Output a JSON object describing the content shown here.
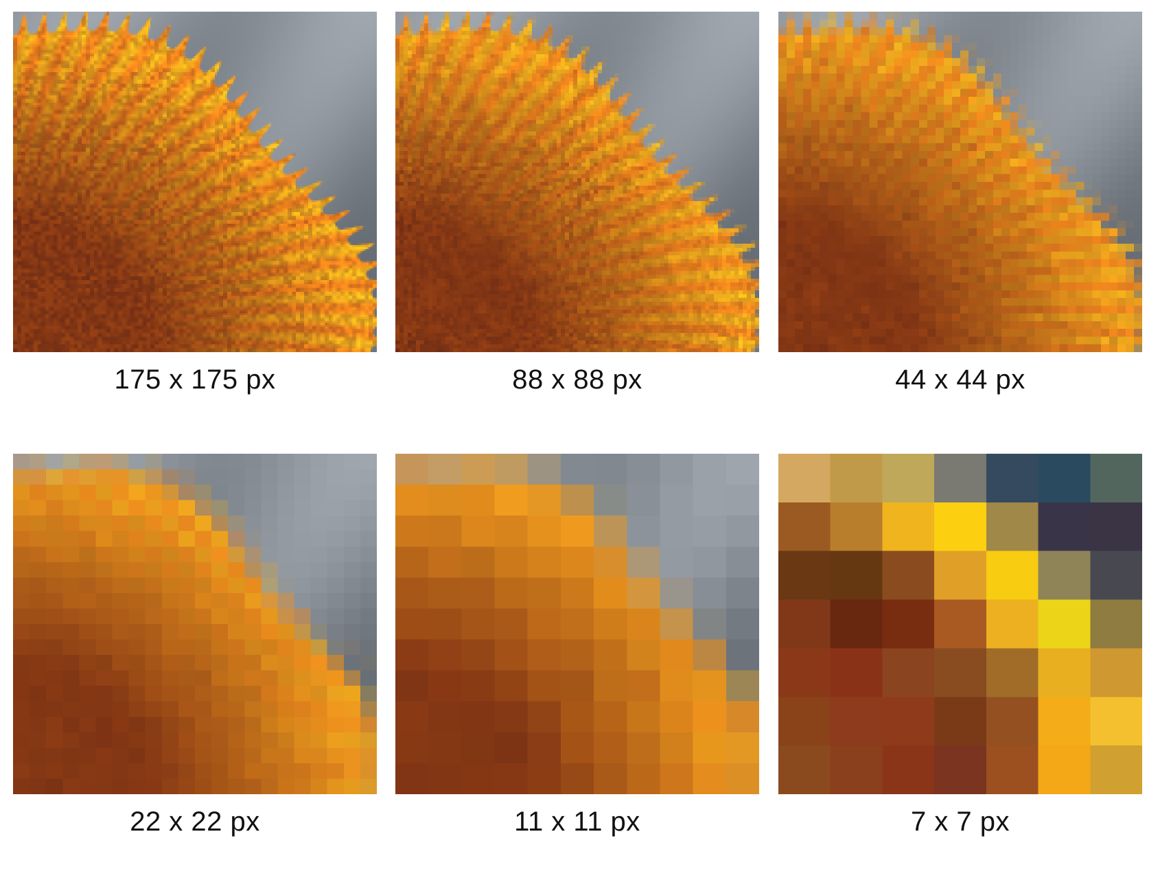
{
  "panels": [
    {
      "label": "175 x 175 px",
      "resolution": 175
    },
    {
      "label": "88 x 88 px",
      "resolution": 88
    },
    {
      "label": "44 x 44 px",
      "resolution": 44
    },
    {
      "label": "22 x 22 px",
      "resolution": 22
    },
    {
      "label": "11 x 11 px",
      "resolution": 11
    },
    {
      "label": "7 x 7 px",
      "resolution": 7
    }
  ],
  "grid_7x7_colors": [
    [
      "#d4a860",
      "#c09a48",
      "#c0a85a",
      "#7a7a72",
      "#354a5e",
      "#2a4a60",
      "#52665e"
    ],
    [
      "#9a5a22",
      "#b87e2c",
      "#f0b41e",
      "#fcd010",
      "#a08848",
      "#3a3448",
      "#3a3444"
    ],
    [
      "#6a3812",
      "#663812",
      "#8a4c1e",
      "#e0a028",
      "#f8cc10",
      "#8e8458",
      "#484850"
    ],
    [
      "#803818",
      "#682810",
      "#782c10",
      "#a85a22",
      "#ecb020",
      "#ecd418",
      "#8e7c40"
    ],
    [
      "#8a3818",
      "#8a3218",
      "#8a4420",
      "#884c20",
      "#a06c28",
      "#e8b020",
      "#d09830"
    ],
    [
      "#8a4218",
      "#8e3a1c",
      "#903a1c",
      "#7a3a18",
      "#945020",
      "#f4ac18",
      "#f4c030"
    ],
    [
      "#8a4a1e",
      "#8a401c",
      "#8a3418",
      "#7a3420",
      "#9c5020",
      "#f4a818",
      "#d0a030"
    ]
  ]
}
